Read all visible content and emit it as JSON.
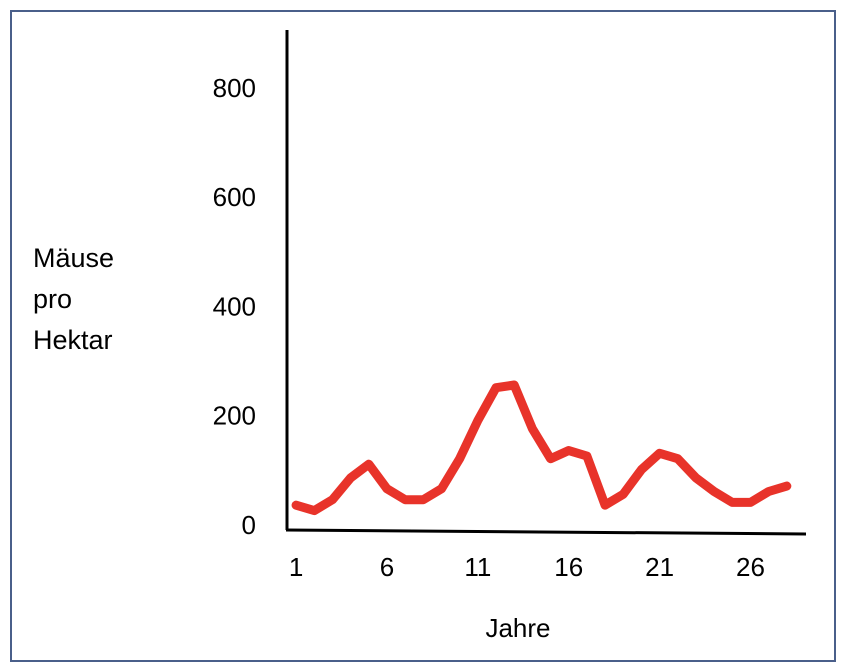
{
  "chart_data": {
    "type": "line",
    "y_label": "Mäuse pro Hektar",
    "x_label": "Jahre",
    "x": [
      1,
      2,
      3,
      4,
      5,
      6,
      7,
      8,
      9,
      10,
      11,
      12,
      13,
      14,
      15,
      16,
      17,
      18,
      19,
      20,
      21,
      22,
      23,
      24,
      25,
      26,
      27,
      28
    ],
    "series": [
      {
        "color": "#e8332a",
        "values": [
          40,
          30,
          50,
          90,
          115,
          70,
          50,
          50,
          70,
          125,
          195,
          255,
          260,
          180,
          125,
          140,
          130,
          40,
          60,
          105,
          135,
          125,
          90,
          65,
          45,
          45,
          65,
          75
        ]
      }
    ],
    "xlim": [
      0.5,
      29
    ],
    "xticks": [
      1,
      6,
      11,
      16,
      21,
      26
    ],
    "ylim": [
      0,
      910
    ],
    "yticks": [
      0,
      200,
      400,
      600,
      800
    ],
    "grid": false
  }
}
